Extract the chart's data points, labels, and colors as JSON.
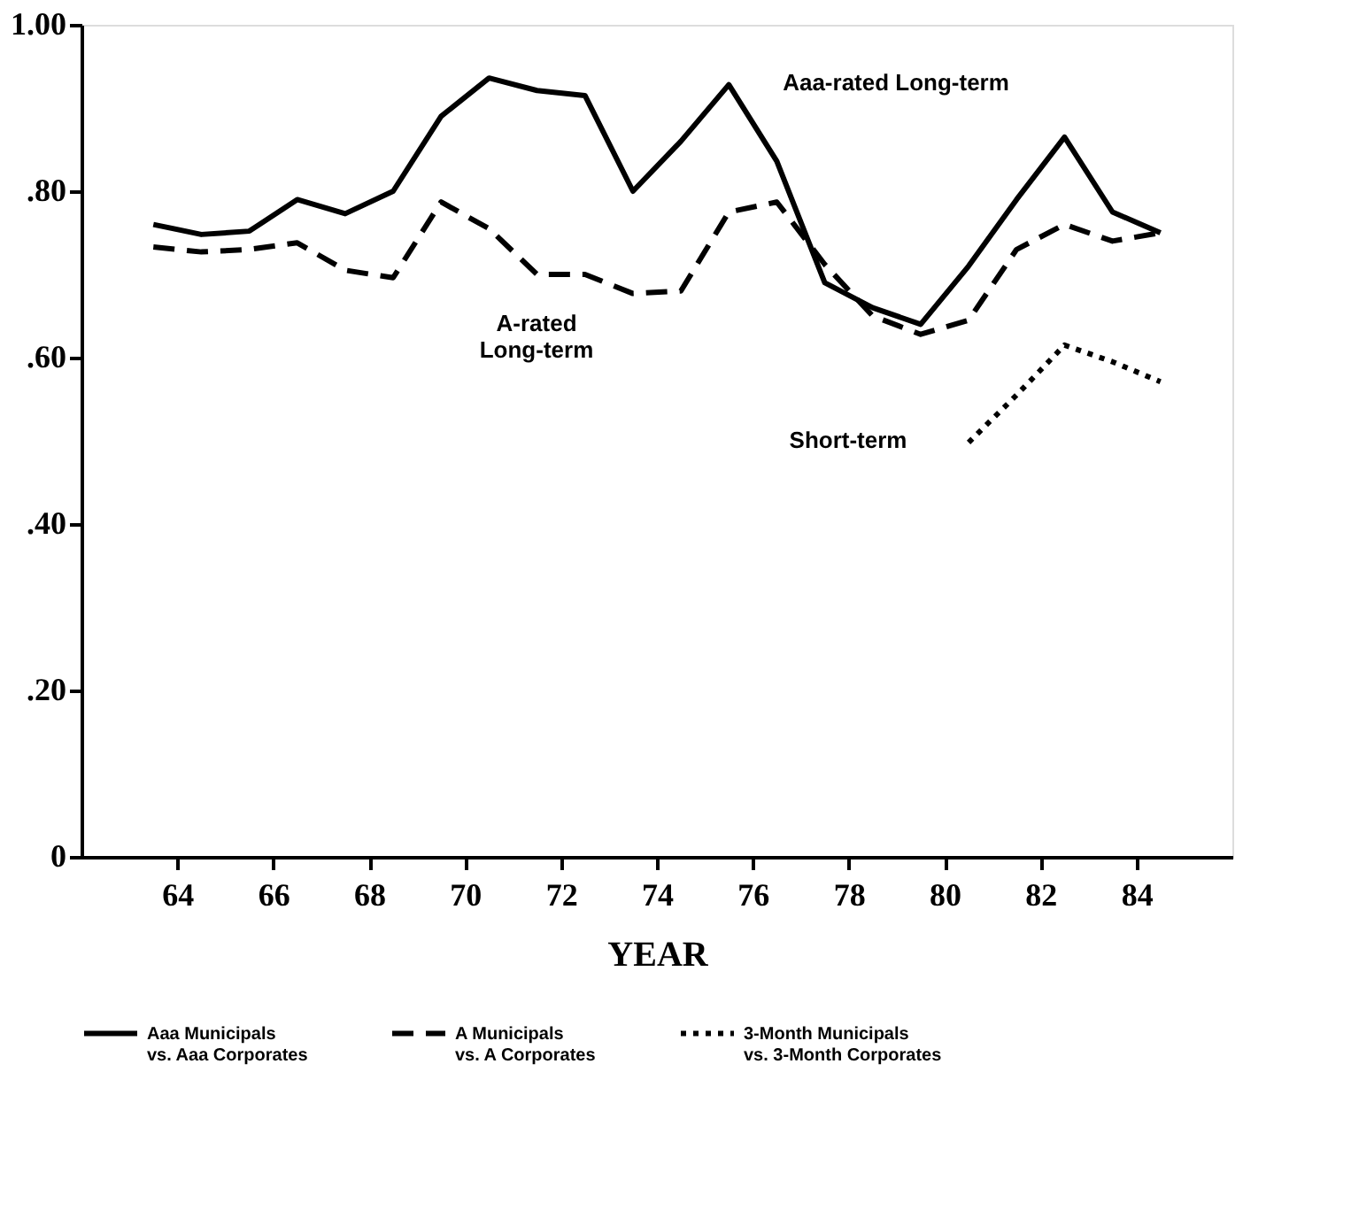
{
  "chart_data": {
    "type": "line",
    "xlabel": "YEAR",
    "x": [
      63.5,
      64.5,
      65.5,
      66.5,
      67.5,
      68.5,
      69.5,
      70.5,
      71.5,
      72.5,
      73.5,
      74.5,
      75.5,
      76.5,
      77.5,
      78.5,
      79.5,
      80.5,
      81.5,
      82.5,
      83.5,
      84.5
    ],
    "series": [
      {
        "name": "Aaa Municipals\nvs. Aaa Corporates",
        "color": "#000000",
        "line_style": "solid",
        "values": [
          0.76,
          0.748,
          0.752,
          0.79,
          0.773,
          0.8,
          0.89,
          0.936,
          0.921,
          0.915,
          0.8,
          0.86,
          0.928,
          0.836,
          0.69,
          0.66,
          0.64,
          0.71,
          0.79,
          0.865,
          0.775,
          0.75
        ]
      },
      {
        "name": "A Municipals\nvs. A Corporates",
        "color": "#000000",
        "line_style": "dashed",
        "values": [
          0.733,
          0.727,
          0.73,
          0.738,
          0.705,
          0.696,
          0.787,
          0.755,
          0.7,
          0.7,
          0.677,
          0.68,
          0.775,
          0.787,
          0.712,
          0.65,
          0.628,
          0.645,
          0.73,
          0.76,
          0.74,
          0.75
        ]
      },
      {
        "name": "3-Month Municipals\nvs. 3-Month Corporates",
        "color": "#000000",
        "line_style": "dotted",
        "x": [
          80.5,
          81.5,
          82.5,
          83.5,
          84.5
        ],
        "values": [
          0.498,
          0.555,
          0.615,
          0.595,
          0.571
        ]
      }
    ],
    "xlim": [
      62,
      86
    ],
    "xticks": [
      64,
      66,
      68,
      70,
      72,
      74,
      76,
      78,
      80,
      82,
      84
    ],
    "ylim": [
      0,
      1
    ],
    "yticks": [
      {
        "value": 0,
        "label": "0"
      },
      {
        "value": 0.2,
        "label": ".20"
      },
      {
        "value": 0.4,
        "label": ".40"
      },
      {
        "value": 0.6,
        "label": ".60"
      },
      {
        "value": 0.8,
        "label": ".80"
      },
      {
        "value": 1,
        "label": "1.00"
      }
    ],
    "annotations": [
      "Aaa-rated Long-term",
      "A-rated\nLong-term",
      "Short-term"
    ],
    "grid": false,
    "legend": "bottom"
  }
}
